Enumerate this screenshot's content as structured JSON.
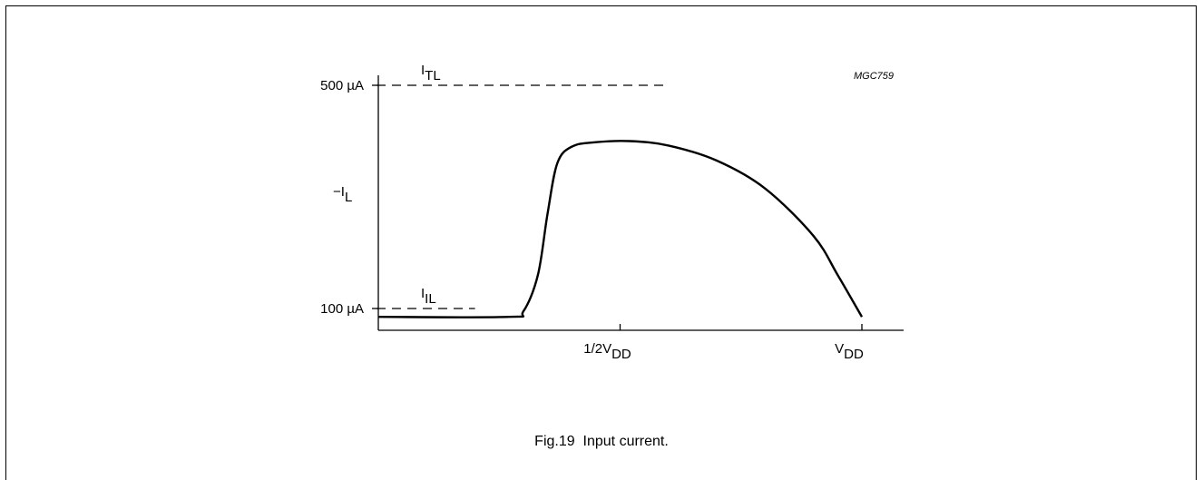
{
  "chart_data": {
    "type": "line",
    "title": "",
    "figure_code": "MGC759",
    "ylabel": {
      "prefix": "−I",
      "subscript": "L"
    },
    "y_ticks": [
      {
        "value": 100,
        "label": "100 µA"
      },
      {
        "value": 500,
        "label": "500 µA"
      }
    ],
    "x_ticks": [
      {
        "value": 0.5,
        "label": "1/2V",
        "subscript": "DD"
      },
      {
        "value": 1.0,
        "label": "V",
        "subscript": "DD"
      }
    ],
    "reference_lines": [
      {
        "name": "I",
        "subscript": "TL",
        "y": 500,
        "x_end": 0.59,
        "style": "dashed"
      },
      {
        "name": "I",
        "subscript": "IL",
        "y": 100,
        "x_end": 0.2,
        "style": "dashed"
      }
    ],
    "series": [
      {
        "x": [
          0.0,
          0.27,
          0.3,
          0.33,
          0.35,
          0.37,
          0.4,
          0.45,
          0.52,
          0.6,
          0.7,
          0.8,
          0.9,
          0.95,
          1.0
        ],
        "y": [
          85,
          85,
          95,
          160,
          270,
          360,
          390,
          398,
          400,
          392,
          365,
          315,
          230,
          160,
          85
        ]
      }
    ],
    "grid": false
  },
  "caption": "Fig.19  Input current."
}
